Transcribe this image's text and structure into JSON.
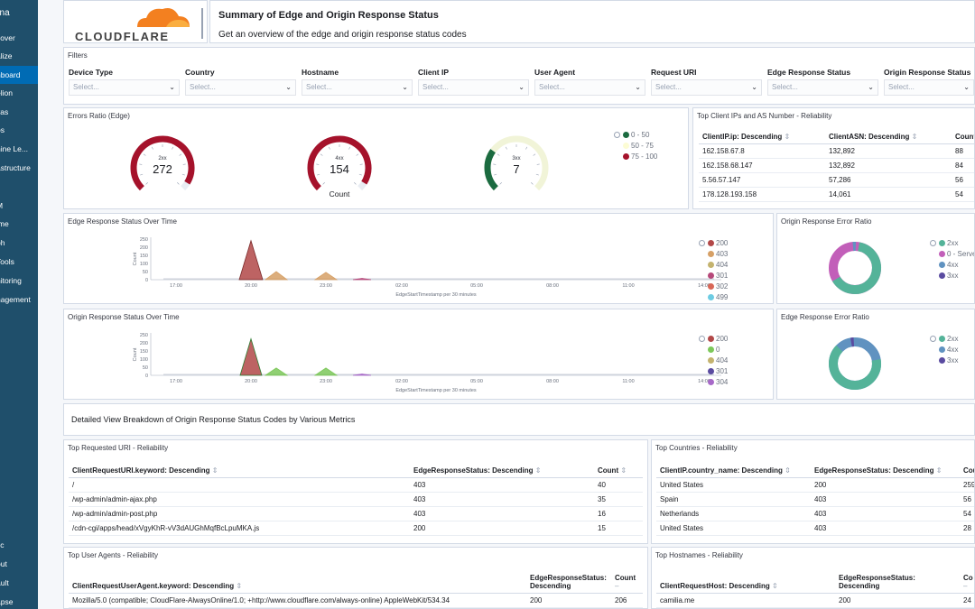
{
  "sidebar": {
    "app_name": "ana",
    "items": [
      "cover",
      "alize",
      "hboard",
      "elion",
      "vas",
      "os",
      "hine Le...",
      "astructure",
      "s",
      "M",
      "ime",
      "ph",
      "Tools",
      "nitoring",
      "nagement"
    ],
    "active_index": 2,
    "bottom_items": [
      "tic",
      "out",
      "ault",
      "apse"
    ]
  },
  "header": {
    "logo_text": "CLOUDFLARE",
    "title": "Summary of Edge and Origin Response Status",
    "subtitle": "Get an overview of the edge and origin response status codes"
  },
  "filters": {
    "title": "Filters",
    "items": [
      {
        "label": "Device Type",
        "placeholder": "Select..."
      },
      {
        "label": "Country",
        "placeholder": "Select..."
      },
      {
        "label": "Hostname",
        "placeholder": "Select..."
      },
      {
        "label": "Client IP",
        "placeholder": "Select..."
      },
      {
        "label": "User Agent",
        "placeholder": "Select..."
      },
      {
        "label": "Request URI",
        "placeholder": "Select..."
      },
      {
        "label": "Edge Response Status",
        "placeholder": "Select..."
      },
      {
        "label": "Origin Response Status",
        "placeholder": "Select..."
      }
    ]
  },
  "errors_ratio": {
    "title": "Errors Ratio (Edge)",
    "gauges": [
      {
        "label": "2xx",
        "value": "272",
        "level": 0.95,
        "color": "#a5122b"
      },
      {
        "label": "4xx",
        "value": "154",
        "level": 0.95,
        "color": "#a5122b"
      },
      {
        "label": "3xx",
        "value": "7",
        "level": 0.3,
        "color": "#1b6b40"
      }
    ],
    "sublabel": "Count",
    "legend": [
      {
        "label": "0 - 50",
        "color": "#1b6b40"
      },
      {
        "label": "50 - 75",
        "color": "#fcfcd4"
      },
      {
        "label": "75 - 100",
        "color": "#a5122b"
      }
    ]
  },
  "top_client_ips": {
    "title": "Top Client IPs and AS Number - Reliability",
    "headers": [
      "ClientIP.ip: Descending",
      "ClientASN: Descending",
      "Count"
    ],
    "rows": [
      [
        "162.158.67.8",
        "132,892",
        "88"
      ],
      [
        "162.158.68.147",
        "132,892",
        "84"
      ],
      [
        "5.56.57.147",
        "57,286",
        "56"
      ],
      [
        "178.128.193.158",
        "14,061",
        "54"
      ]
    ]
  },
  "edge_over_time": {
    "title": "Edge Response Status Over Time",
    "xlabel": "EdgeStartTimestamp per 30 minutes",
    "ylabel": "Count",
    "ticks_x": [
      "17:00",
      "20:00",
      "23:00",
      "02:00",
      "05:00",
      "08:00",
      "11:00",
      "14:00"
    ],
    "ticks_y": [
      "250",
      "200",
      "150",
      "100",
      "50",
      "0"
    ],
    "legend": [
      {
        "label": "200",
        "color": "#b24848"
      },
      {
        "label": "403",
        "color": "#d6a066"
      },
      {
        "label": "404",
        "color": "#c4b36f"
      },
      {
        "label": "301",
        "color": "#b6497a"
      },
      {
        "label": "302",
        "color": "#d86757"
      },
      {
        "label": "499",
        "color": "#6dcce3"
      }
    ]
  },
  "origin_error_ratio": {
    "title": "Origin Response Error Ratio",
    "legend": [
      {
        "label": "2xx",
        "color": "#54b399"
      },
      {
        "label": "0 - Serve",
        "color": "#c25fb9"
      },
      {
        "label": "4xx",
        "color": "#6092c0"
      },
      {
        "label": "3xx",
        "color": "#5a4ba0"
      }
    ]
  },
  "origin_over_time": {
    "title": "Origin Response Status Over Time",
    "xlabel": "EdgeStartTimestamp per 30 minutes",
    "ylabel": "Count",
    "ticks_x": [
      "17:00",
      "20:00",
      "23:00",
      "02:00",
      "05:00",
      "08:00",
      "11:00",
      "14:00"
    ],
    "ticks_y": [
      "250",
      "200",
      "150",
      "100",
      "50",
      "0"
    ],
    "legend": [
      {
        "label": "200",
        "color": "#b24848"
      },
      {
        "label": "0",
        "color": "#7dc85a"
      },
      {
        "label": "404",
        "color": "#c4b36f"
      },
      {
        "label": "301",
        "color": "#5a4ba0"
      },
      {
        "label": "304",
        "color": "#a769c8"
      }
    ]
  },
  "edge_error_ratio": {
    "title": "Edge Response Error Ratio",
    "legend": [
      {
        "label": "2xx",
        "color": "#54b399"
      },
      {
        "label": "4xx",
        "color": "#6092c0"
      },
      {
        "label": "3xx",
        "color": "#5a4ba0"
      }
    ]
  },
  "detail_view": {
    "title": "Detailed View Breakdown of Origin Response Status Codes by Various Metrics"
  },
  "top_uri": {
    "title": "Top Requested URI - Reliability",
    "headers": [
      "ClientRequestURI.keyword: Descending",
      "EdgeResponseStatus: Descending",
      "Count"
    ],
    "rows": [
      [
        "/",
        "403",
        "40"
      ],
      [
        "/wp-admin/admin-ajax.php",
        "403",
        "35"
      ],
      [
        "/wp-admin/admin-post.php",
        "403",
        "16"
      ],
      [
        "/cdn-cgi/apps/head/xVgyKhR-vV3dAUGhMqfBcLpuMKA.js",
        "200",
        "15"
      ]
    ]
  },
  "top_countries": {
    "title": "Top Countries - Reliability",
    "headers": [
      "ClientIP.country_name: Descending",
      "EdgeResponseStatus: Descending",
      "Cou"
    ],
    "rows": [
      [
        "United States",
        "200",
        "259"
      ],
      [
        "Spain",
        "403",
        "56"
      ],
      [
        "Netherlands",
        "403",
        "54"
      ],
      [
        "United States",
        "403",
        "28"
      ]
    ]
  },
  "top_user_agents": {
    "title": "Top User Agents - Reliability",
    "headers": [
      "ClientRequestUserAgent.keyword: Descending",
      "EdgeResponseStatus:",
      "Descending",
      "Count"
    ],
    "rows": [
      [
        "Mozilla/5.0 (compatible; CloudFlare-AlwaysOnline/1.0; +http://www.cloudflare.com/always-online) AppleWebKit/534.34",
        "200",
        "206"
      ]
    ]
  },
  "top_hostnames": {
    "title": "Top Hostnames - Reliability",
    "headers": [
      "ClientRequestHost: Descending",
      "EdgeResponseStatus:",
      "Descending",
      "Co"
    ],
    "rows": [
      [
        "camilia.me",
        "200",
        "24"
      ]
    ]
  }
}
